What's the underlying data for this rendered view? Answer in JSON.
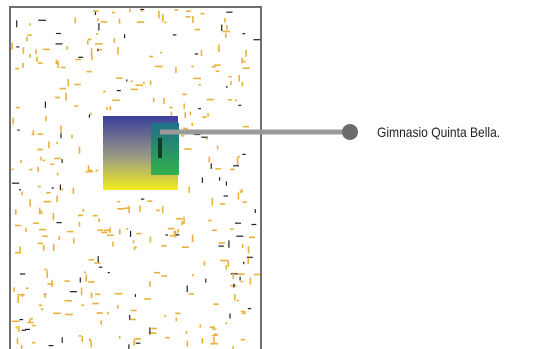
{
  "map": {
    "street_color": "#e8b23a",
    "block_color": "#222222",
    "frame_color": "#6e6e6e"
  },
  "site": {
    "fill_top_color": "#3b3f9a",
    "fill_bottom_color": "#f2ee1c",
    "building_color": "#2e9a4a"
  },
  "callout": {
    "label": "Gimnasio Quinta Bella.",
    "line_color": "#9a9a9a",
    "marker_icon": "dot-icon"
  }
}
